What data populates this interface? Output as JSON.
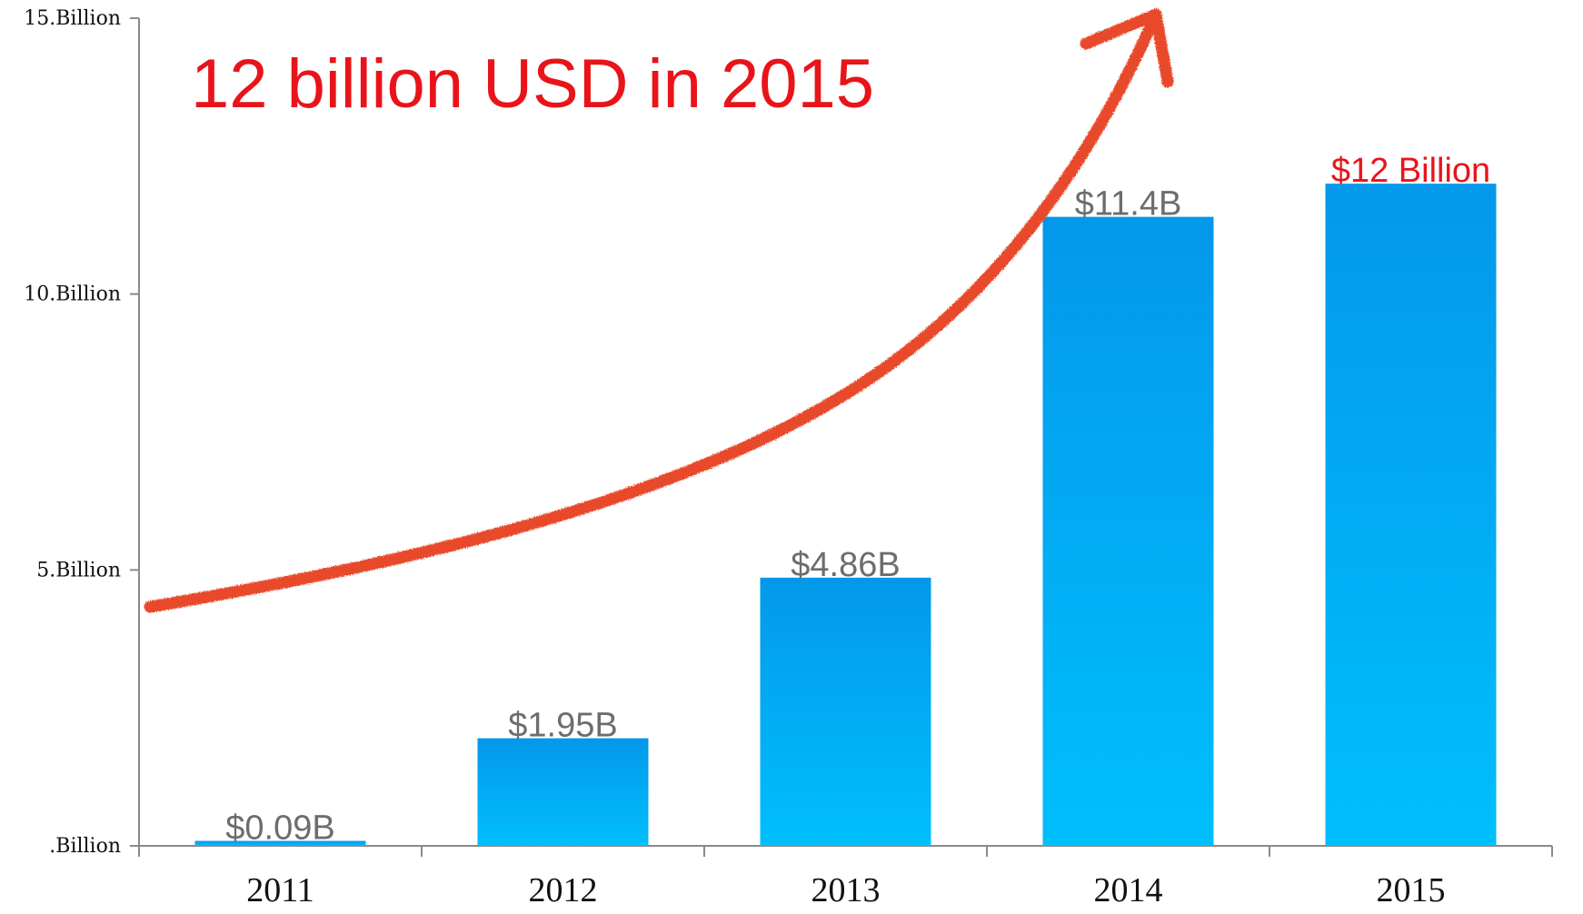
{
  "headline": "12 billion USD in 2015",
  "colors": {
    "bar_top": "#0398ea",
    "bar_bottom": "#00bffd",
    "data_label_default": "#6d6d6d",
    "data_label_highlight": "#e8141a",
    "headline": "#e8141a",
    "arrow": "#e84a2c",
    "axis": "#8a8a8a"
  },
  "chart_data": {
    "type": "bar",
    "title": "",
    "xlabel": "",
    "ylabel": "",
    "categories": [
      "2011",
      "2012",
      "2013",
      "2014",
      "2015"
    ],
    "values": [
      0.09,
      1.95,
      4.86,
      11.4,
      12
    ],
    "data_labels": [
      "$0.09B",
      "$1.95B",
      "$4.86B",
      "$11.4B",
      "$12 Billion"
    ],
    "highlight_index": 4,
    "ylim": [
      0,
      15
    ],
    "yticks": [
      {
        "value": 0,
        "label": ".Billion"
      },
      {
        "value": 5,
        "label": "5.Billion"
      },
      {
        "value": 10,
        "label": "10.Billion"
      },
      {
        "value": 15,
        "label": "15.Billion"
      }
    ],
    "grid": false,
    "legend": "none",
    "annotation": "upward trend arrow"
  }
}
